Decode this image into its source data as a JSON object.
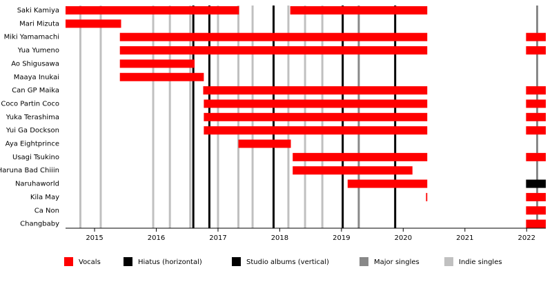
{
  "chart_data": {
    "type": "timeline",
    "xlim": [
      2014.53,
      2022.31
    ],
    "xticks": [
      2015,
      2016,
      2017,
      2018,
      2019,
      2020,
      2021,
      2022
    ],
    "legend": [
      {
        "name": "Vocals",
        "color": "#ff0000"
      },
      {
        "name": "Hiatus (horizontal)",
        "color": "#000000"
      },
      {
        "name": "Studio albums (vertical)",
        "color": "#000000"
      },
      {
        "name": "Major singles",
        "color": "#888888"
      },
      {
        "name": "Indie singles",
        "color": "#c0c0c0"
      }
    ],
    "studio_albums": [
      2016.6,
      2016.86,
      2017.9,
      2019.02,
      2019.87
    ],
    "major_singles": [
      2019.28,
      2022.17
    ],
    "indie_singles": [
      2014.77,
      2015.1,
      2015.95,
      2016.22,
      2016.55,
      2017.0,
      2017.33,
      2017.56,
      2018.14,
      2018.41,
      2018.69
    ],
    "members": [
      {
        "name": "Saki Kamiya",
        "vocals": [
          [
            2014.53,
            2017.34
          ],
          [
            2018.17,
            2020.39
          ]
        ]
      },
      {
        "name": "Mari Mizuta",
        "vocals": [
          [
            2014.53,
            2015.43
          ]
        ]
      },
      {
        "name": "Miki Yamamachi",
        "vocals": [
          [
            2015.41,
            2020.39
          ],
          [
            2021.99,
            2022.31
          ]
        ]
      },
      {
        "name": "Yua Yumeno",
        "vocals": [
          [
            2015.41,
            2020.39
          ],
          [
            2021.99,
            2022.31
          ]
        ]
      },
      {
        "name": "Ao Shigusawa",
        "vocals": [
          [
            2015.41,
            2016.62
          ]
        ]
      },
      {
        "name": "Maaya Inukai",
        "vocals": [
          [
            2015.41,
            2016.77
          ]
        ]
      },
      {
        "name": "Can GP Maika",
        "vocals": [
          [
            2016.76,
            2020.39
          ],
          [
            2021.99,
            2022.31
          ]
        ]
      },
      {
        "name": "Coco Partin Coco",
        "vocals": [
          [
            2016.77,
            2020.39
          ],
          [
            2021.99,
            2022.31
          ]
        ]
      },
      {
        "name": "Yuka Terashima",
        "vocals": [
          [
            2016.77,
            2020.39
          ],
          [
            2021.99,
            2022.31
          ]
        ]
      },
      {
        "name": "Yui Ga Dockson",
        "vocals": [
          [
            2016.77,
            2020.39
          ],
          [
            2021.99,
            2022.31
          ]
        ]
      },
      {
        "name": "Aya Eightprince",
        "vocals": [
          [
            2017.33,
            2018.18
          ]
        ]
      },
      {
        "name": "Usagi Tsukino",
        "vocals": [
          [
            2018.21,
            2020.39
          ],
          [
            2021.99,
            2022.31
          ]
        ]
      },
      {
        "name": "Haruna Bad Chiiin",
        "vocals": [
          [
            2018.21,
            2020.15
          ]
        ]
      },
      {
        "name": "Naruhaworld",
        "vocals": [
          [
            2019.1,
            2020.39
          ]
        ],
        "hiatus": [
          [
            2021.99,
            2022.31
          ]
        ]
      },
      {
        "name": "Kila May",
        "vocals": [
          [
            2020.37,
            2020.39
          ],
          [
            2021.99,
            2022.31
          ]
        ]
      },
      {
        "name": "Ca Non",
        "vocals": [
          [
            2021.99,
            2022.31
          ]
        ]
      },
      {
        "name": "Changbaby",
        "vocals": [
          [
            2021.99,
            2022.31
          ]
        ]
      }
    ]
  }
}
